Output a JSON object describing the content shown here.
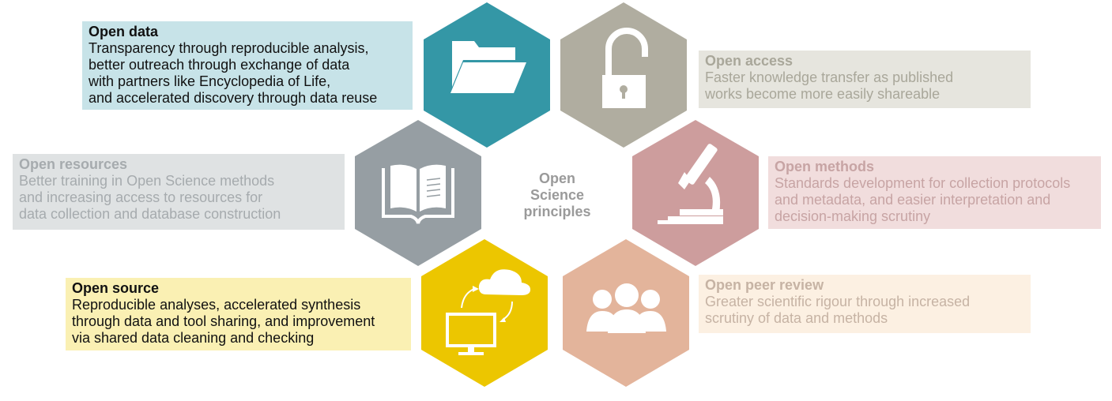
{
  "center": {
    "lines": [
      "Open",
      "Science",
      "principles"
    ]
  },
  "principles": [
    {
      "key": "open-data",
      "title": "Open data",
      "lines": [
        "Transparency through reproducible analysis,",
        "better outreach through exchange of data",
        "with partners like Encyclopedia of Life,",
        "and accelerated discovery through data reuse"
      ],
      "hex_color": "#3497a6",
      "box_color": "#c7e3e8",
      "text_color": "#111111",
      "icon": "folder-icon"
    },
    {
      "key": "open-access",
      "title": "Open access",
      "lines": [
        "Faster knowledge transfer as published",
        "works become more easily shareable"
      ],
      "hex_color": "#b0ada0",
      "box_color": "#e6e5de",
      "text_color": "#a9a79a",
      "icon": "padlock-open-icon"
    },
    {
      "key": "open-resources",
      "title": "Open resources",
      "lines": [
        "Better training in Open Science methods",
        "and increasing access to resources for",
        "data collection and database construction"
      ],
      "hex_color": "#969ea3",
      "box_color": "#dfe2e3",
      "text_color": "#a6abae",
      "icon": "book-icon"
    },
    {
      "key": "open-methods",
      "title": "Open methods",
      "lines": [
        "Standards development for collection protocols",
        "and metadata, and easier interpretation and",
        "decision-making scrutiny"
      ],
      "hex_color": "#cd9d9d",
      "box_color": "#f1dddd",
      "text_color": "#c7a4a4",
      "icon": "microscope-icon"
    },
    {
      "key": "open-source",
      "title": "Open source",
      "lines": [
        "Reproducible analyses, accelerated synthesis",
        "through data and tool sharing, and improvement",
        "via shared data cleaning and checking"
      ],
      "hex_color": "#ecc600",
      "box_color": "#faf0b3",
      "text_color": "#111111",
      "icon": "computer-cloud-icon"
    },
    {
      "key": "open-peer-review",
      "title": "Open peer review",
      "lines": [
        "Greater scientific rigour through increased",
        "scrutiny of data and methods"
      ],
      "hex_color": "#e3b49b",
      "box_color": "#fcf0e2",
      "text_color": "#c6b3a4",
      "icon": "people-group-icon"
    }
  ]
}
